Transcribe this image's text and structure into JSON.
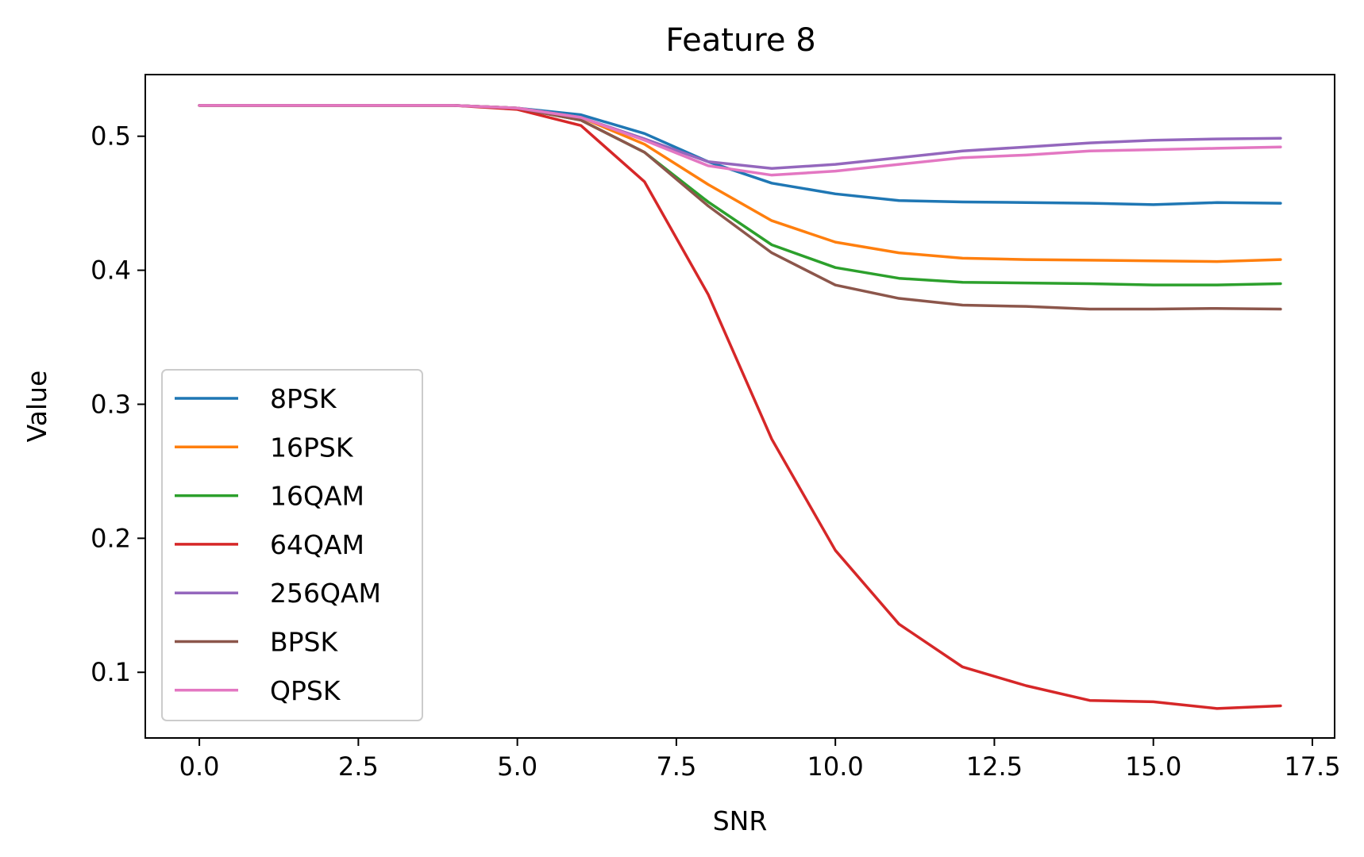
{
  "chart_data": {
    "type": "line",
    "title": "Feature 8",
    "xlabel": "SNR",
    "ylabel": "Value",
    "xlim": [
      -0.85,
      17.85
    ],
    "ylim": [
      0.051,
      0.546
    ],
    "xticks": [
      0.0,
      2.5,
      5.0,
      7.5,
      10.0,
      12.5,
      15.0,
      17.5
    ],
    "xtick_labels": [
      "0.0",
      "2.5",
      "5.0",
      "7.5",
      "10.0",
      "12.5",
      "15.0",
      "17.5"
    ],
    "yticks": [
      0.1,
      0.2,
      0.3,
      0.4,
      0.5
    ],
    "ytick_labels": [
      "0.1",
      "0.2",
      "0.3",
      "0.4",
      "0.5"
    ],
    "grid": false,
    "legend_position": "lower-left",
    "x": [
      0,
      1,
      2,
      3,
      4,
      5,
      6,
      7,
      8,
      9,
      10,
      11,
      12,
      13,
      14,
      15,
      16,
      17
    ],
    "series": [
      {
        "name": "8PSK",
        "color": "#1f77b4",
        "values": [
          0.523,
          0.523,
          0.523,
          0.523,
          0.523,
          0.521,
          0.516,
          0.502,
          0.481,
          0.465,
          0.457,
          0.452,
          0.451,
          0.4505,
          0.45,
          0.449,
          0.4505,
          0.45
        ]
      },
      {
        "name": "16PSK",
        "color": "#ff7f0e",
        "values": [
          0.523,
          0.523,
          0.523,
          0.523,
          0.523,
          0.521,
          0.514,
          0.494,
          0.464,
          0.437,
          0.421,
          0.413,
          0.409,
          0.408,
          0.4075,
          0.407,
          0.4065,
          0.408
        ]
      },
      {
        "name": "16QAM",
        "color": "#2ca02c",
        "values": [
          0.523,
          0.523,
          0.523,
          0.523,
          0.523,
          0.521,
          0.512,
          0.488,
          0.451,
          0.419,
          0.402,
          0.394,
          0.391,
          0.3905,
          0.39,
          0.389,
          0.389,
          0.39
        ]
      },
      {
        "name": "64QAM",
        "color": "#d62728",
        "values": [
          0.523,
          0.523,
          0.523,
          0.523,
          0.523,
          0.52,
          0.508,
          0.466,
          0.382,
          0.274,
          0.191,
          0.136,
          0.104,
          0.09,
          0.079,
          0.078,
          0.073,
          0.075
        ]
      },
      {
        "name": "256QAM",
        "color": "#9467bd",
        "values": [
          0.523,
          0.523,
          0.523,
          0.523,
          0.523,
          0.521,
          0.514,
          0.498,
          0.481,
          0.476,
          0.479,
          0.484,
          0.489,
          0.492,
          0.495,
          0.497,
          0.498,
          0.4985
        ]
      },
      {
        "name": "BPSK",
        "color": "#8c564b",
        "values": [
          0.523,
          0.523,
          0.523,
          0.523,
          0.523,
          0.521,
          0.512,
          0.488,
          0.448,
          0.413,
          0.389,
          0.379,
          0.374,
          0.373,
          0.371,
          0.371,
          0.3715,
          0.371
        ]
      },
      {
        "name": "QPSK",
        "color": "#e377c2",
        "values": [
          0.523,
          0.523,
          0.523,
          0.523,
          0.523,
          0.521,
          0.514,
          0.497,
          0.478,
          0.471,
          0.474,
          0.479,
          0.484,
          0.486,
          0.489,
          0.49,
          0.491,
          0.492
        ]
      }
    ]
  }
}
